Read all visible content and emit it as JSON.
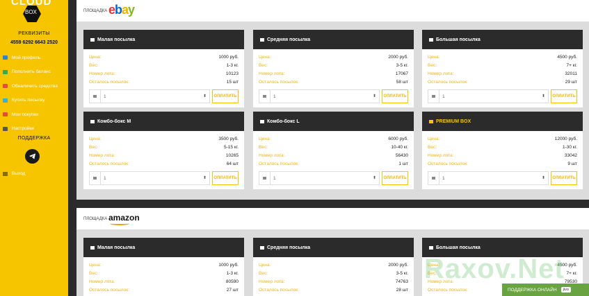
{
  "sidebar": {
    "logo_text": "CLOUD",
    "logo_sub": "BOX",
    "requisites_title": "РЕКВИЗИТЫ",
    "card_number": "4559 6292 6643 2520",
    "items": [
      {
        "label": "Мой профиль",
        "icon": "monitor-icon",
        "color": "#3a7bd5"
      },
      {
        "label": "Пополнить баланс",
        "icon": "wallet-icon",
        "color": "#35a853"
      },
      {
        "label": "Обналичить средства",
        "icon": "cash-icon",
        "color": "#e34b3b"
      },
      {
        "label": "Купить посылку",
        "icon": "package-icon",
        "color": "#3ab0d0"
      },
      {
        "label": "Мои покупки",
        "icon": "cart-icon",
        "color": "#e34b3b"
      },
      {
        "label": "Настройки",
        "icon": "gear-icon",
        "color": "#555555"
      }
    ],
    "support_title": "ПОДДЕРЖКА",
    "exit_label": "Выход"
  },
  "sections": [
    {
      "label": "ПЛОЩАДКА",
      "platform": "ebay",
      "cards": [
        {
          "title": "Малая посылка",
          "premium": false,
          "price": "1000 руб.",
          "weight": "1-3 кг.",
          "lot": "10123",
          "left": "15 шт",
          "qty": "1"
        },
        {
          "title": "Средняя посылка",
          "premium": false,
          "price": "2000 руб.",
          "weight": "3-5 кг.",
          "lot": "17067",
          "left": "58 шт",
          "qty": "1"
        },
        {
          "title": "Большая посылка",
          "premium": false,
          "price": "4500 руб.",
          "weight": "7+ кг.",
          "lot": "32011",
          "left": "29 шт",
          "qty": "1"
        },
        {
          "title": "Комбо-бокс M",
          "premium": false,
          "price": "3500 руб.",
          "weight": "5-15 кг.",
          "lot": "10265",
          "left": "64 шт",
          "qty": "1"
        },
        {
          "title": "Комбо-бокс L",
          "premium": false,
          "price": "6000 руб.",
          "weight": "10-40 кг.",
          "lot": "56430",
          "left": "1 шт",
          "qty": "1"
        },
        {
          "title": "PREMIUM BOX",
          "premium": true,
          "price": "12000 руб.",
          "weight": "1-30 кг.",
          "lot": "33042",
          "left": "9 шт",
          "qty": "1"
        }
      ]
    },
    {
      "label": "ПЛОЩАДКА",
      "platform": "amazon",
      "cards": [
        {
          "title": "Малая посылка",
          "premium": false,
          "price": "1000 руб.",
          "weight": "1-3 кг.",
          "lot": "80590",
          "left": "27 шт"
        },
        {
          "title": "Средняя посылка",
          "premium": false,
          "price": "2000 руб.",
          "weight": "3-5 кг.",
          "lot": "74763",
          "left": "28 шт"
        },
        {
          "title": "Большая посылка",
          "premium": false,
          "price": "4500 руб.",
          "weight": "7+ кг.",
          "lot": "79530",
          "left": ""
        }
      ]
    }
  ],
  "labels": {
    "price": "Цена:",
    "weight": "Вес:",
    "lot": "Номер лота:",
    "left": "Осталось посылок:",
    "pay": "ОПЛАТИТЬ"
  },
  "ebay_letters": [
    "e",
    "b",
    "a",
    "y"
  ],
  "amazon_text": "amazon",
  "watermark": "Raxov.Net",
  "chat": {
    "label": "ПОДДЕРЖКА ОНЛАЙН",
    "badge": "jivo"
  },
  "colors": {
    "accent": "#f7c400",
    "dark": "#2b2b2b"
  }
}
